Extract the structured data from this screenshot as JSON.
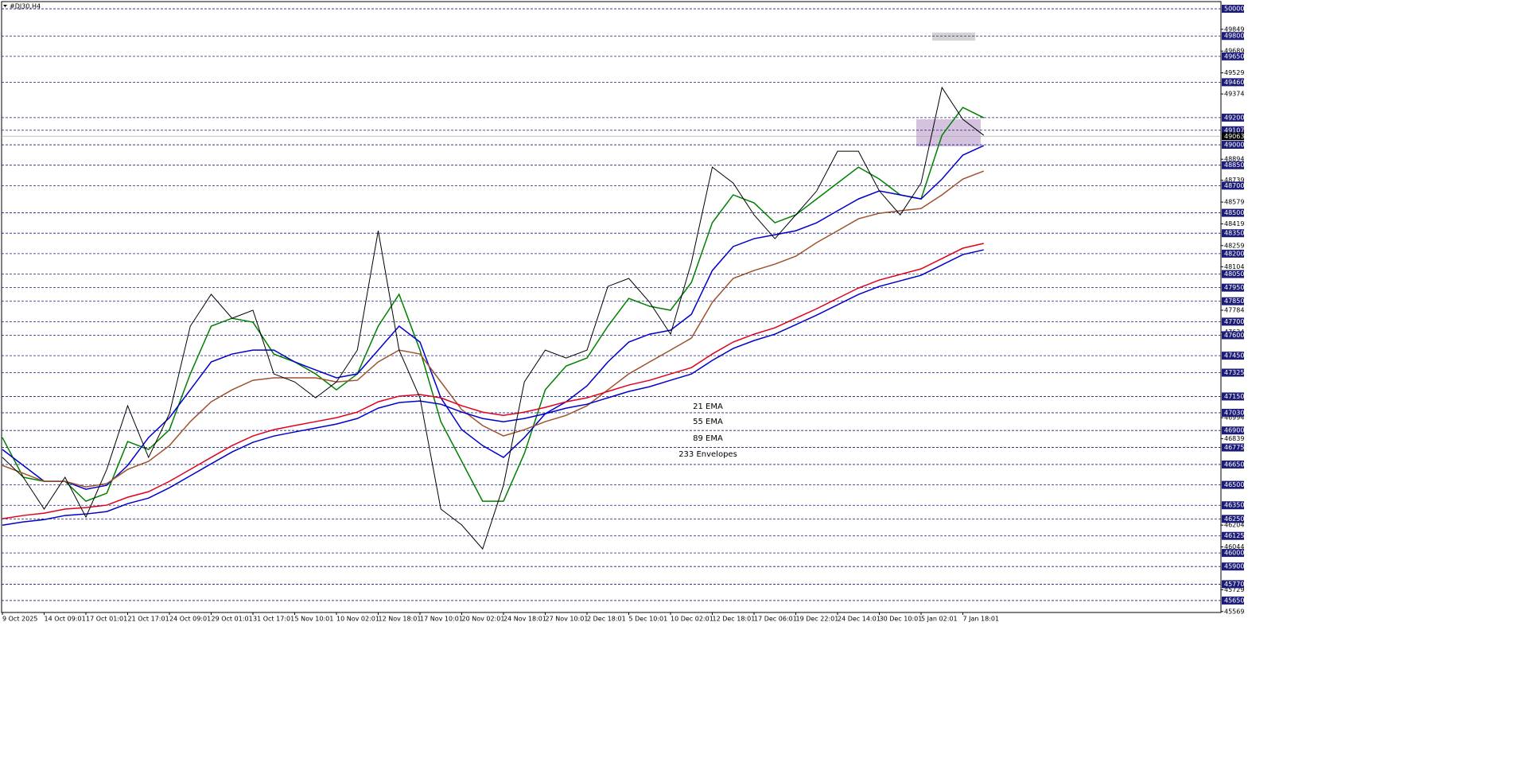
{
  "chart_data": {
    "type": "line",
    "title": "#DJ30,H4",
    "categories": [
      "9 Oct 2025",
      null,
      "14 Oct 09:01",
      null,
      "17 Oct 01:01",
      null,
      "21 Oct 17:01",
      null,
      "24 Oct 09:01",
      null,
      "29 Oct 01:01",
      null,
      "31 Oct 17:01",
      null,
      "5 Nov 10:01",
      null,
      "10 Nov 02:01",
      null,
      "12 Nov 18:01",
      null,
      "17 Nov 10:01",
      null,
      "20 Nov 02:01",
      null,
      "24 Nov 18:01",
      null,
      "27 Nov 10:01",
      null,
      "2 Dec 18:01",
      null,
      "5 Dec 10:01",
      null,
      "10 Dec 02:01",
      null,
      "12 Dec 18:01",
      null,
      "17 Dec 06:01",
      null,
      "19 Dec 22:01",
      null,
      "24 Dec 14:01",
      null,
      "30 Dec 10:01",
      null,
      "5 Jan 02:01",
      null,
      "7 Jan 18:01",
      null
    ],
    "price": {
      "color": "#000000",
      "values": [
        46702,
        46556,
        46322,
        46556,
        46263,
        46614,
        47082,
        46702,
        47023,
        47667,
        47901,
        47725,
        47784,
        47316,
        47257,
        47140,
        47257,
        47491,
        48368,
        47491,
        47140,
        46322,
        46205,
        46029,
        46497,
        47257,
        47491,
        47433,
        47491,
        47959,
        48018,
        47842,
        47608,
        48135,
        48836,
        48719,
        48485,
        48310,
        48485,
        48661,
        48953,
        48953,
        48661,
        48485,
        48719,
        49421,
        49187,
        49070
      ]
    },
    "series": [
      {
        "name": "21 EMA",
        "color": "#008000",
        "values": [
          46848,
          46556,
          46526,
          46526,
          46380,
          46439,
          46819,
          46760,
          46906,
          47316,
          47667,
          47725,
          47696,
          47462,
          47404,
          47316,
          47199,
          47316,
          47667,
          47901,
          47491,
          46965,
          46673,
          46380,
          46380,
          46731,
          47199,
          47374,
          47433,
          47667,
          47871,
          47813,
          47784,
          47988,
          48427,
          48632,
          48573,
          48427,
          48485,
          48602,
          48719,
          48836,
          48748,
          48632,
          48602,
          49070,
          49275,
          49199
        ]
      },
      {
        "name": "55 EMA",
        "color": "#0000cc",
        "values": [
          46760,
          46643,
          46526,
          46526,
          46468,
          46497,
          46643,
          46848,
          46994,
          47199,
          47404,
          47462,
          47491,
          47491,
          47404,
          47345,
          47287,
          47316,
          47491,
          47667,
          47550,
          47140,
          46906,
          46789,
          46702,
          46848,
          47023,
          47111,
          47228,
          47404,
          47550,
          47608,
          47637,
          47754,
          48076,
          48252,
          48310,
          48339,
          48368,
          48427,
          48515,
          48602,
          48661,
          48632,
          48602,
          48748,
          48924,
          48994
        ]
      },
      {
        "name": "89 EMA",
        "color": "#a0522d",
        "values": [
          46643,
          46585,
          46526,
          46526,
          46485,
          46509,
          46614,
          46673,
          46789,
          46965,
          47111,
          47199,
          47269,
          47287,
          47287,
          47287,
          47257,
          47269,
          47404,
          47491,
          47462,
          47257,
          47053,
          46936,
          46860,
          46906,
          46965,
          47011,
          47082,
          47199,
          47316,
          47404,
          47491,
          47579,
          47842,
          48018,
          48076,
          48123,
          48181,
          48281,
          48368,
          48456,
          48497,
          48515,
          48532,
          48632,
          48748,
          48807
        ]
      },
      {
        "name": "233 Envelopes",
        "color": "#e00020",
        "values": [
          46251,
          46275,
          46292,
          46322,
          46333,
          46351,
          46409,
          46450,
          46526,
          46614,
          46702,
          46789,
          46860,
          46906,
          46936,
          46965,
          46994,
          47035,
          47111,
          47152,
          47164,
          47140,
          47082,
          47035,
          47011,
          47035,
          47070,
          47111,
          47140,
          47187,
          47234,
          47269,
          47316,
          47362,
          47462,
          47550,
          47608,
          47655,
          47725,
          47795,
          47871,
          47947,
          48006,
          48047,
          48088,
          48164,
          48240,
          48275
        ],
        "lower": [
          46204,
          46228,
          46245,
          46275,
          46286,
          46304,
          46362,
          46403,
          46479,
          46567,
          46655,
          46742,
          46813,
          46859,
          46889,
          46918,
          46947,
          46988,
          47064,
          47105,
          47117,
          47093,
          47035,
          46988,
          46964,
          46988,
          47023,
          47064,
          47093,
          47140,
          47187,
          47222,
          47269,
          47315,
          47415,
          47503,
          47561,
          47608,
          47678,
          47748,
          47824,
          47900,
          47959,
          48000,
          48041,
          48117,
          48193,
          48228
        ],
        "lower_color": "#0000cc"
      }
    ],
    "ylim": [
      45562,
      50047
    ],
    "yticks": [
      49849,
      49689,
      49529,
      49374,
      48894,
      48739,
      48579,
      48419,
      48259,
      48104,
      47784,
      47624,
      46994,
      46839,
      46204,
      46044,
      45729,
      45569
    ],
    "levels": [
      50000,
      49800,
      49650,
      49460,
      49200,
      49107,
      49000,
      48850,
      48700,
      48500,
      48350,
      48200,
      48050,
      47950,
      47850,
      47700,
      47600,
      47450,
      47325,
      47150,
      47030,
      46900,
      46775,
      46650,
      46500,
      46350,
      46250,
      46125,
      46000,
      45900,
      45770,
      45650
    ],
    "level_color": "#1c1c78",
    "last_price": 49063
  }
}
